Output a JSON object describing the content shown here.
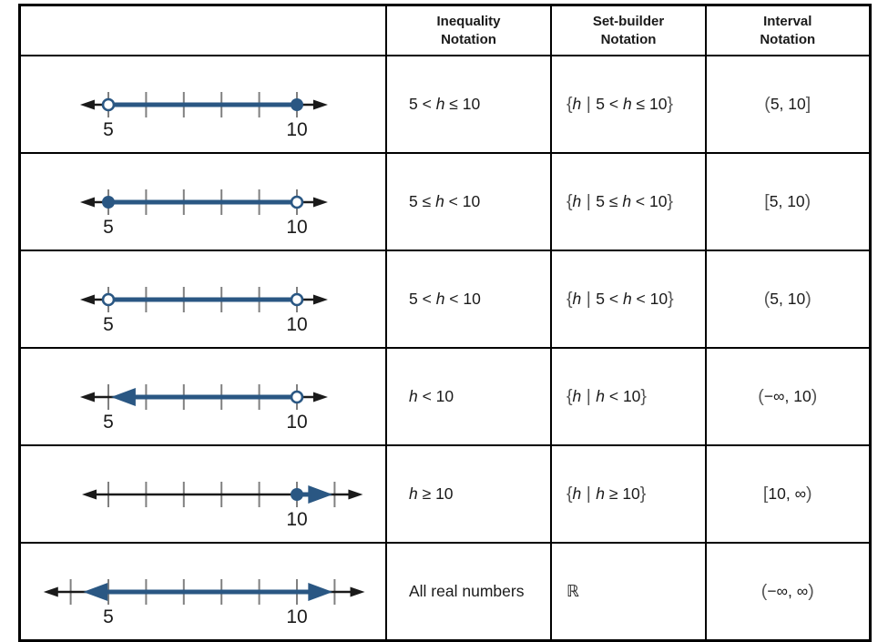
{
  "colors": {
    "line_blue": "#2a5783",
    "axis_black": "#1a1a1a",
    "tick_gray": "#808080",
    "border_black": "#000000",
    "background": "#ffffff"
  },
  "header": {
    "cols": [
      {
        "line1": "Inequality",
        "line2": "Notation"
      },
      {
        "line1": "Set-builder",
        "line2": "Notation"
      },
      {
        "line1": "Interval",
        "line2": "Notation"
      }
    ]
  },
  "rows": [
    {
      "numberline": {
        "ticks": [
          5,
          6,
          7,
          8,
          9,
          10
        ],
        "labels": [
          {
            "at": 5,
            "text": "5"
          },
          {
            "at": 10,
            "text": "10"
          }
        ],
        "axis": {
          "from": 4.25,
          "to": 10.82
        },
        "shade": {
          "from": 5,
          "to": 10,
          "left": "open",
          "right": "closed"
        }
      },
      "inequality": [
        {
          "t": "5 < "
        },
        {
          "t": "h",
          "i": 1
        },
        {
          "t": " ≤ 10"
        }
      ],
      "set_builder": [
        {
          "t": "{",
          "d": 1
        },
        {
          "t": "h",
          "i": 1
        },
        {
          "t": " | ",
          "d": 1
        },
        {
          "t": "5 < "
        },
        {
          "t": "h",
          "i": 1
        },
        {
          "t": " ≤ 10"
        },
        {
          "t": "}",
          "d": 1
        }
      ],
      "interval": [
        {
          "t": "(",
          "d": 1
        },
        {
          "t": "5, 10"
        },
        {
          "t": "]",
          "d": 1
        }
      ]
    },
    {
      "numberline": {
        "ticks": [
          5,
          6,
          7,
          8,
          9,
          10
        ],
        "labels": [
          {
            "at": 5,
            "text": "5"
          },
          {
            "at": 10,
            "text": "10"
          }
        ],
        "axis": {
          "from": 4.25,
          "to": 10.82
        },
        "shade": {
          "from": 5,
          "to": 10,
          "left": "closed",
          "right": "open"
        }
      },
      "inequality": [
        {
          "t": "5 ≤ "
        },
        {
          "t": "h",
          "i": 1
        },
        {
          "t": " < 10"
        }
      ],
      "set_builder": [
        {
          "t": "{",
          "d": 1
        },
        {
          "t": "h",
          "i": 1
        },
        {
          "t": " | ",
          "d": 1
        },
        {
          "t": "5 ≤ "
        },
        {
          "t": "h",
          "i": 1
        },
        {
          "t": " < 10"
        },
        {
          "t": "}",
          "d": 1
        }
      ],
      "interval": [
        {
          "t": "[",
          "d": 1
        },
        {
          "t": "5, 10"
        },
        {
          "t": ")",
          "d": 1
        }
      ]
    },
    {
      "numberline": {
        "ticks": [
          5,
          6,
          7,
          8,
          9,
          10
        ],
        "labels": [
          {
            "at": 5,
            "text": "5"
          },
          {
            "at": 10,
            "text": "10"
          }
        ],
        "axis": {
          "from": 4.25,
          "to": 10.82
        },
        "shade": {
          "from": 5,
          "to": 10,
          "left": "open",
          "right": "open"
        }
      },
      "inequality": [
        {
          "t": "5 < "
        },
        {
          "t": "h",
          "i": 1
        },
        {
          "t": " < 10"
        }
      ],
      "set_builder": [
        {
          "t": "{",
          "d": 1
        },
        {
          "t": "h",
          "i": 1
        },
        {
          "t": " | ",
          "d": 1
        },
        {
          "t": "5 < "
        },
        {
          "t": "h",
          "i": 1
        },
        {
          "t": " < 10"
        },
        {
          "t": "}",
          "d": 1
        }
      ],
      "interval": [
        {
          "t": "(",
          "d": 1
        },
        {
          "t": "5, 10"
        },
        {
          "t": ")",
          "d": 1
        }
      ]
    },
    {
      "numberline": {
        "ticks": [
          5,
          6,
          7,
          8,
          9,
          10
        ],
        "labels": [
          {
            "at": 5,
            "text": "5"
          },
          {
            "at": 10,
            "text": "10"
          }
        ],
        "axis": {
          "from": 4.25,
          "to": 10.82
        },
        "shade": {
          "from": 5.07,
          "to": 10,
          "left": "arrow",
          "right": "open"
        }
      },
      "inequality": [
        {
          "t": "h",
          "i": 1
        },
        {
          "t": " < 10"
        }
      ],
      "set_builder": [
        {
          "t": "{",
          "d": 1
        },
        {
          "t": "h",
          "i": 1
        },
        {
          "t": " | ",
          "d": 1
        },
        {
          "t": "h",
          "i": 1
        },
        {
          "t": " < 10"
        },
        {
          "t": "}",
          "d": 1
        }
      ],
      "interval": [
        {
          "t": "(",
          "d": 1
        },
        {
          "t": "−∞, 10"
        },
        {
          "t": ")",
          "d": 1
        }
      ]
    },
    {
      "numberline": {
        "ticks": [
          5,
          6,
          7,
          8,
          9,
          10,
          11
        ],
        "labels": [
          {
            "at": 10,
            "text": "10"
          }
        ],
        "axis": {
          "from": 4.3,
          "to": 11.75
        },
        "shade": {
          "from": 10,
          "to": 10.95,
          "left": "closed",
          "right": "arrow"
        }
      },
      "inequality": [
        {
          "t": "h",
          "i": 1
        },
        {
          "t": " ≥ 10"
        }
      ],
      "set_builder": [
        {
          "t": "{",
          "d": 1
        },
        {
          "t": "h",
          "i": 1
        },
        {
          "t": " | ",
          "d": 1
        },
        {
          "t": "h",
          "i": 1
        },
        {
          "t": " ≥ 10"
        },
        {
          "t": "}",
          "d": 1
        }
      ],
      "interval": [
        {
          "t": "[",
          "d": 1
        },
        {
          "t": "10, ∞"
        },
        {
          "t": ")",
          "d": 1
        }
      ]
    },
    {
      "numberline": {
        "ticks": [
          4,
          5,
          6,
          7,
          8,
          9,
          10,
          11
        ],
        "labels": [
          {
            "at": 5,
            "text": "5"
          },
          {
            "at": 10,
            "text": "10"
          }
        ],
        "axis": {
          "from": 3.28,
          "to": 11.8
        },
        "shade": {
          "from": 4.33,
          "to": 10.95,
          "left": "arrow",
          "right": "arrow"
        }
      },
      "inequality": [
        {
          "t": "All real numbers"
        }
      ],
      "set_builder": [
        {
          "t": "ℝ"
        }
      ],
      "interval": [
        {
          "t": "(",
          "d": 1
        },
        {
          "t": "−∞, ∞"
        },
        {
          "t": ")",
          "d": 1
        }
      ]
    }
  ]
}
